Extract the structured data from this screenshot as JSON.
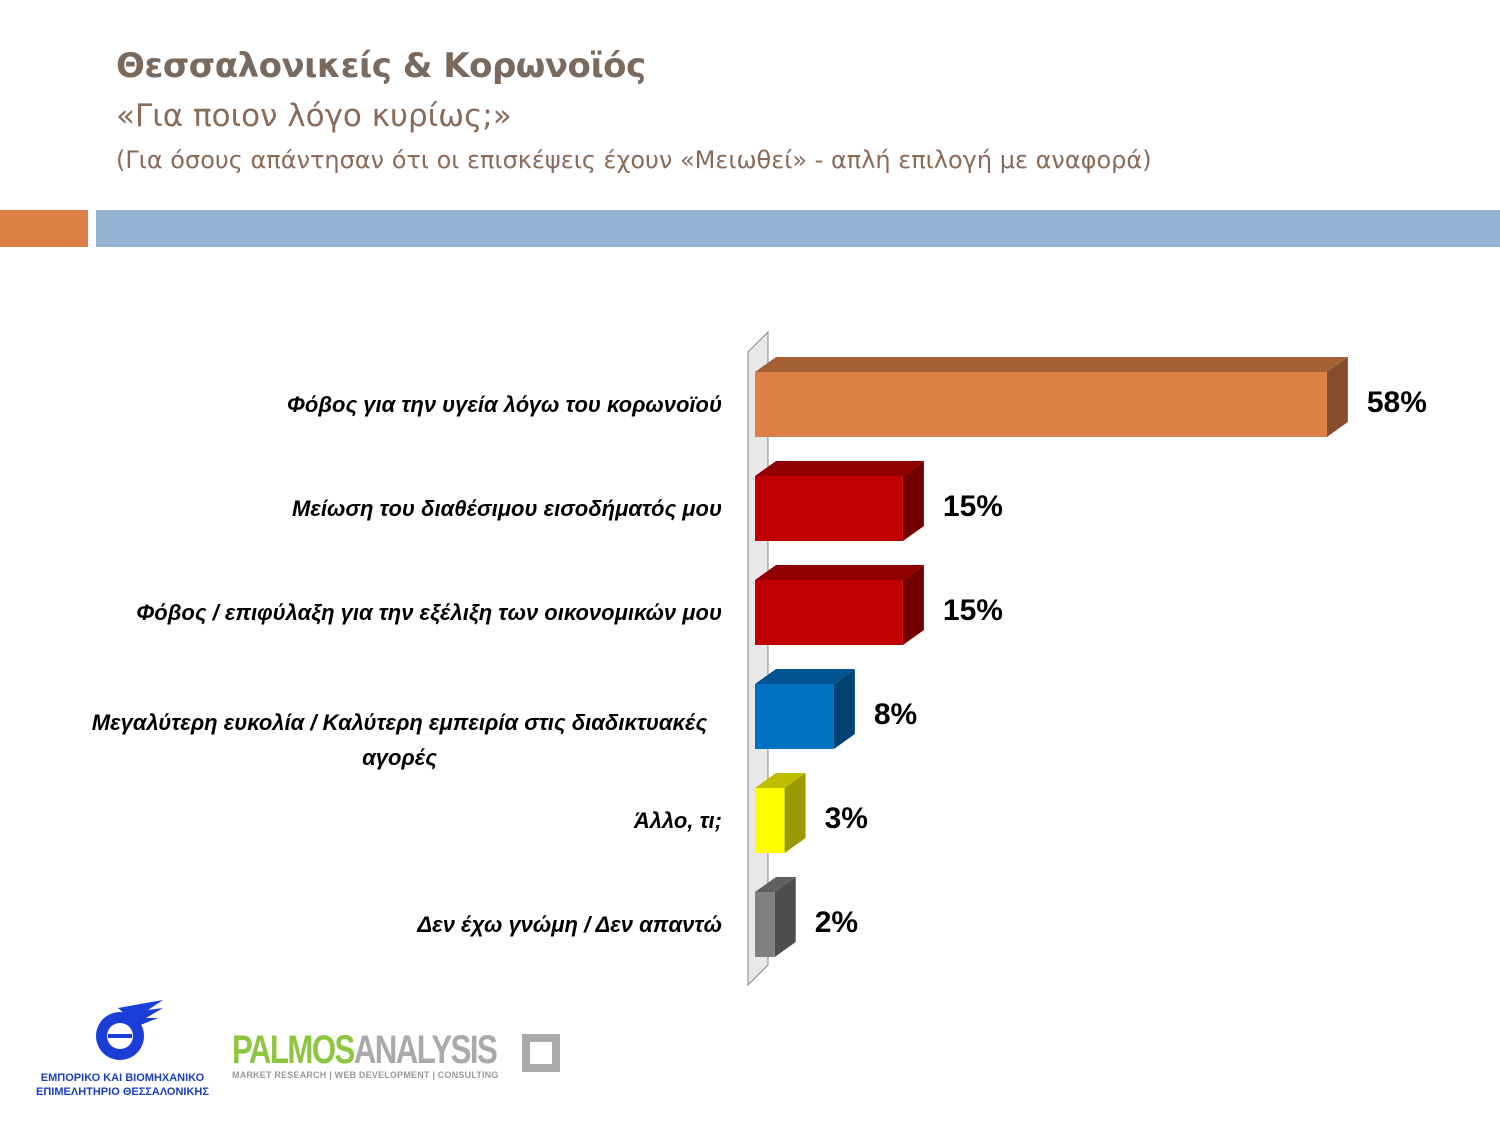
{
  "header": {
    "title": "Θεσσαλονικείς & Κορωνοϊός",
    "question": "«Για ποιον λόγο κυρίως;»",
    "note": "(Για όσους απάντησαν ότι οι επισκέψεις έχουν «Μειωθεί» - απλή επιλογή με αναφορά)"
  },
  "chart_data": {
    "type": "bar",
    "orientation": "horizontal",
    "categories": [
      "Φόβος για την υγεία λόγω του κορωνοϊού",
      "Μείωση του διαθέσιμου εισοδήματός μου",
      "Φόβος / επιφύλαξη για την εξέλιξη των οικονομικών μου",
      "Μεγαλύτερη ευκολία / Καλύτερη εμπειρία στις διαδικτυακές αγορές",
      "Άλλο, τι;",
      "Δεν έχω γνώμη / Δεν απαντώ"
    ],
    "values": [
      58,
      15,
      15,
      8,
      3,
      2
    ],
    "data_labels": [
      "58%",
      "15%",
      "15%",
      "8%",
      "3%",
      "2%"
    ],
    "colors": [
      "#dd8047",
      "#c00000",
      "#c00000",
      "#0070c0",
      "#ffff00",
      "#808080"
    ],
    "unit": "%",
    "style": "3d",
    "grid": false
  },
  "logos": {
    "chamber": "ΕΜΠΟΡΙΚΟ ΚΑΙ ΒΙΟΜΗΧΑΝΙΚΟ ΕΠΙΜΕΛΗΤΗΡΙΟ ΘΕΣΣΑΛΟΝΙΚΗΣ",
    "palmos_a": "PALMOS",
    "palmos_b": "ANALYSIS",
    "palmos_tagline": "MARKET RESEARCH | WEB DEVELOPMENT | CONSULTING"
  }
}
